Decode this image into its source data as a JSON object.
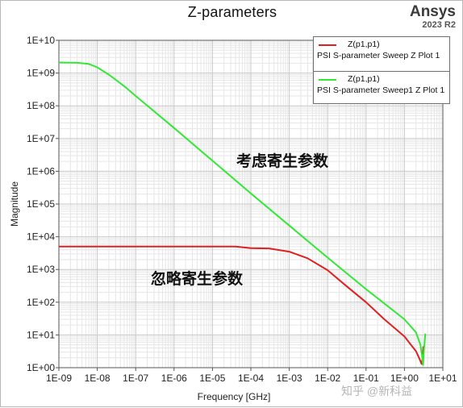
{
  "brand": {
    "name": "Ansys",
    "version": "2023 R2"
  },
  "watermark": "知乎 @新科益",
  "colors": {
    "red_series": "#e02020",
    "green_series": "#33e833",
    "grid_major": "#c8c8c8",
    "grid_minor": "#e6e6e6",
    "axis": "#555555"
  },
  "chart_data": {
    "type": "line",
    "title": "Z-parameters",
    "xlabel": "Frequency [GHz]",
    "ylabel": "Magnitude",
    "x_scale": "log",
    "y_scale": "log",
    "xlim": [
      1e-09,
      10
    ],
    "ylim": [
      1,
      10000000000.0
    ],
    "grid": true,
    "legend_position": "top-right",
    "x_ticks": [
      "1E-09",
      "1E-08",
      "1E-07",
      "1E-06",
      "1E-05",
      "1E-04",
      "1E-03",
      "1E-02",
      "1E-01",
      "1E+00",
      "1E+01"
    ],
    "y_ticks": [
      "1E+00",
      "1E+01",
      "1E+02",
      "1E+03",
      "1E+04",
      "1E+05",
      "1E+06",
      "1E+07",
      "1E+08",
      "1E+09",
      "1E+10"
    ],
    "series": [
      {
        "name": "Z(p1,p1)",
        "description": "PSI S-parameter Sweep Z Plot 1",
        "color": "#e02020",
        "points": [
          [
            1e-09,
            5000
          ],
          [
            1e-08,
            5000
          ],
          [
            1e-07,
            5000
          ],
          [
            1e-06,
            5000
          ],
          [
            1e-05,
            5000
          ],
          [
            4e-05,
            5000
          ],
          [
            0.0001,
            4500
          ],
          [
            0.0003,
            4400
          ],
          [
            0.001,
            3500
          ],
          [
            0.003,
            2200
          ],
          [
            0.01,
            950
          ],
          [
            0.03,
            320
          ],
          [
            0.1,
            100
          ],
          [
            0.3,
            30
          ],
          [
            1,
            9
          ],
          [
            2,
            3.2
          ],
          [
            2.5,
            1.8
          ],
          [
            2.8,
            1.3
          ],
          [
            3.0,
            2.0
          ],
          [
            3.1,
            4.5
          ]
        ]
      },
      {
        "name": "Z(p1,p1)",
        "description": "PSI S-parameter Sweep1 Z Plot 1",
        "color": "#33e833",
        "points": [
          [
            1e-09,
            2100000000.0
          ],
          [
            3e-09,
            2050000000.0
          ],
          [
            6e-09,
            1900000000.0
          ],
          [
            1e-08,
            1500000000.0
          ],
          [
            2e-08,
            900000000.0
          ],
          [
            5e-08,
            400000000.0
          ],
          [
            1e-07,
            200000000.0
          ],
          [
            1e-06,
            21000000.0
          ],
          [
            1e-05,
            2100000.0
          ],
          [
            0.0001,
            210000.0
          ],
          [
            0.001,
            22000.0
          ],
          [
            0.01,
            2300
          ],
          [
            0.1,
            250
          ],
          [
            1,
            30
          ],
          [
            2,
            12
          ],
          [
            2.6,
            5
          ],
          [
            2.9,
            2.2
          ],
          [
            3.05,
            1.2
          ],
          [
            3.2,
            3
          ],
          [
            3.5,
            11
          ]
        ]
      }
    ],
    "annotations": [
      {
        "text": "考虑寄生参数",
        "series": 1
      },
      {
        "text": "忽略寄生参数",
        "series": 0
      }
    ]
  }
}
